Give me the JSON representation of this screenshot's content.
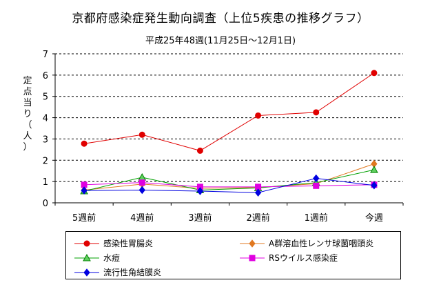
{
  "title": "京都府感染症発生動向調査（上位5疾患の推移グラフ）",
  "subtitle": "平成25年48週(11月25日〜12月1日)",
  "chart_data": {
    "type": "line",
    "ylabel": "定点当り（人）",
    "ylim": [
      0,
      7
    ],
    "yticks": [
      0,
      1,
      2,
      3,
      4,
      5,
      6,
      7
    ],
    "grid": true,
    "legend_position": "bottom",
    "categories": [
      "5週前",
      "4週前",
      "3週前",
      "2週前",
      "1週前",
      "今週"
    ],
    "series": [
      {
        "name": "感染性胃腸炎",
        "color": "#e00000",
        "marker": "circle",
        "values": [
          2.78,
          3.2,
          2.45,
          4.1,
          4.25,
          6.1
        ]
      },
      {
        "name": "A群溶血性レンサ球菌咽頭炎",
        "color": "#e07820",
        "marker": "diamond",
        "values": [
          0.6,
          0.88,
          0.68,
          0.72,
          0.9,
          1.83
        ]
      },
      {
        "name": "水痘",
        "color": "#00a000",
        "marker": "triangle",
        "values": [
          0.55,
          1.2,
          0.6,
          0.7,
          0.95,
          1.55
        ]
      },
      {
        "name": "RSウイルス感染症",
        "color": "#e000e0",
        "marker": "square",
        "values": [
          0.85,
          0.95,
          0.75,
          0.75,
          0.8,
          0.85
        ]
      },
      {
        "name": "流行性角結膜炎",
        "color": "#0000e0",
        "marker": "diamond",
        "values": [
          0.58,
          0.6,
          0.55,
          0.48,
          1.15,
          0.82
        ]
      }
    ]
  }
}
